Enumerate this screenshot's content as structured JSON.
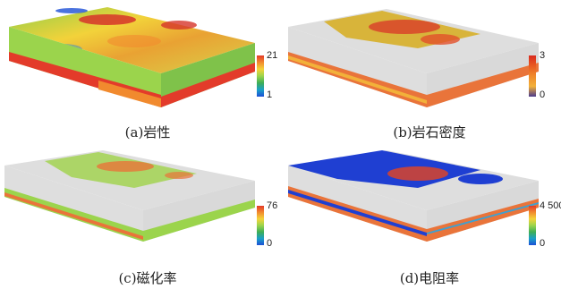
{
  "panels": [
    {
      "caption": "(a)岩性",
      "colorbar": {
        "max": "21",
        "min": "1",
        "colors": [
          "#e33b2a",
          "#f18a2e",
          "#f5d33a",
          "#9bd44c",
          "#3fae56",
          "#1aa0c8",
          "#1d4fd6"
        ]
      }
    },
    {
      "caption": "(b)岩石密度",
      "colorbar": {
        "max": "3",
        "min": "0",
        "colors": [
          "#d92b1f",
          "#e85a22",
          "#f08a2c",
          "#f2b13a",
          "#4b3a8c"
        ]
      }
    },
    {
      "caption": "(c)磁化率",
      "colorbar": {
        "max": "76",
        "min": "0",
        "colors": [
          "#e33b2a",
          "#f18a2e",
          "#f5d33a",
          "#9bd44c",
          "#3fae56",
          "#1aa0c8",
          "#1d4fd6"
        ]
      }
    },
    {
      "caption": "(d)电阻率",
      "colorbar": {
        "max": "4 500",
        "min": "0",
        "colors": [
          "#e33b2a",
          "#f18a2e",
          "#f5d33a",
          "#9bd44c",
          "#3fae56",
          "#1aa0c8",
          "#1d4fd6"
        ]
      }
    }
  ]
}
